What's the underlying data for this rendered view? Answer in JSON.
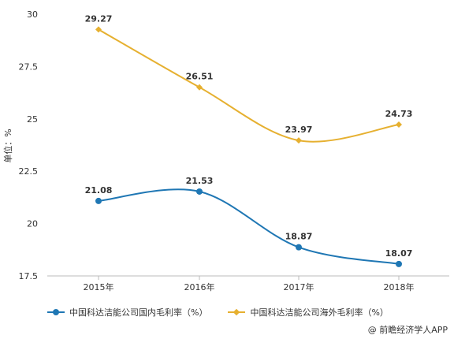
{
  "chart_data": {
    "type": "line",
    "categories": [
      "2015年",
      "2016年",
      "2017年",
      "2018年"
    ],
    "series": [
      {
        "name": "中国科达洁能公司国内毛利率（%）",
        "values": [
          21.08,
          21.53,
          18.87,
          18.07
        ],
        "color": "#1f77b4",
        "marker": "circle"
      },
      {
        "name": "中国科达洁能公司海外毛利率（%）",
        "values": [
          29.27,
          26.51,
          23.97,
          24.73
        ],
        "color": "#e6b030",
        "marker": "diamond"
      }
    ],
    "ylabel": "单位：%",
    "ylim": [
      17.5,
      30
    ],
    "yticks": [
      "17.5",
      "20",
      "22.5",
      "25",
      "27.5",
      "30"
    ],
    "grid": false,
    "legend_position": "bottom"
  },
  "source": "@ 前瞻经济学人APP"
}
